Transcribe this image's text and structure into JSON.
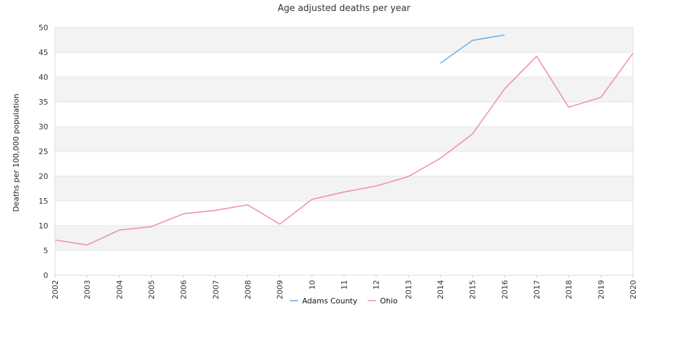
{
  "chart_data": {
    "type": "line",
    "title": "Age adjusted deaths per year",
    "xlabel": "",
    "ylabel": "Deaths per 100,000 population",
    "ylim": [
      0,
      50
    ],
    "yticks": [
      0,
      5,
      10,
      15,
      20,
      25,
      30,
      35,
      40,
      45,
      50
    ],
    "categories": [
      "2002",
      "2003",
      "2004",
      "2005",
      "2006",
      "2007",
      "2008",
      "2009",
      "10",
      "11",
      "12",
      "2013",
      "2014",
      "2015",
      "2016",
      "2017",
      "2018",
      "2019",
      "2020"
    ],
    "grid": "horizontal alternating bands",
    "legend_position": "bottom",
    "series": [
      {
        "name": "Adams County",
        "color": "#6aaee8",
        "values": [
          null,
          null,
          null,
          null,
          null,
          null,
          null,
          null,
          null,
          null,
          null,
          null,
          42.8,
          47.4,
          48.5,
          null,
          null,
          null,
          null
        ]
      },
      {
        "name": "Ohio",
        "color": "#f08cbc",
        "values": [
          7.1,
          6.1,
          9.1,
          9.8,
          12.4,
          13.1,
          14.2,
          10.3,
          15.3,
          16.8,
          18.0,
          19.9,
          23.6,
          28.5,
          37.6,
          44.2,
          33.9,
          35.9,
          44.8
        ]
      }
    ]
  }
}
